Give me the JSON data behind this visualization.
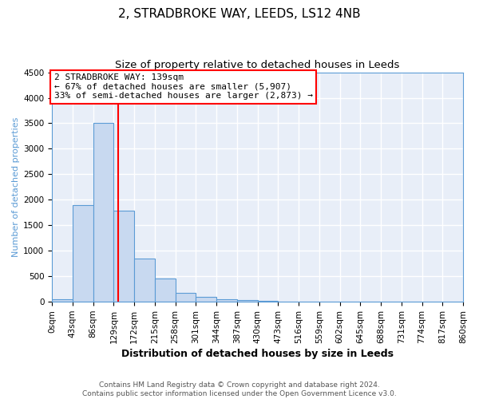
{
  "title": "2, STRADBROKE WAY, LEEDS, LS12 4NB",
  "subtitle": "Size of property relative to detached houses in Leeds",
  "xlabel": "Distribution of detached houses by size in Leeds",
  "ylabel": "Number of detached properties",
  "bin_edges": [
    0,
    43,
    86,
    129,
    172,
    215,
    258,
    301,
    344,
    387,
    430,
    473,
    516,
    559,
    602,
    645,
    688,
    731,
    774,
    817,
    860
  ],
  "bin_labels": [
    "0sqm",
    "43sqm",
    "86sqm",
    "129sqm",
    "172sqm",
    "215sqm",
    "258sqm",
    "301sqm",
    "344sqm",
    "387sqm",
    "430sqm",
    "473sqm",
    "516sqm",
    "559sqm",
    "602sqm",
    "645sqm",
    "688sqm",
    "731sqm",
    "774sqm",
    "817sqm",
    "860sqm"
  ],
  "bar_heights": [
    50,
    1900,
    3500,
    1780,
    850,
    460,
    175,
    95,
    55,
    35,
    20,
    5,
    0,
    0,
    0,
    0,
    0,
    0,
    0,
    0
  ],
  "bar_color": "#c8d9f0",
  "bar_edge_color": "#5b9bd5",
  "vline_x": 139,
  "vline_color": "red",
  "ylim": [
    0,
    4500
  ],
  "annotation_title": "2 STRADBROKE WAY: 139sqm",
  "annotation_line1": "← 67% of detached houses are smaller (5,907)",
  "annotation_line2": "33% of semi-detached houses are larger (2,873) →",
  "annotation_box_facecolor": "#ffffff",
  "annotation_box_edgecolor": "red",
  "footer_line1": "Contains HM Land Registry data © Crown copyright and database right 2024.",
  "footer_line2": "Contains public sector information licensed under the Open Government Licence v3.0.",
  "plot_bg_color": "#e8eef8",
  "fig_bg_color": "#ffffff",
  "grid_color": "#ffffff",
  "title_fontsize": 11,
  "subtitle_fontsize": 9.5,
  "xlabel_fontsize": 9,
  "ylabel_fontsize": 8,
  "tick_fontsize": 7.5,
  "annotation_fontsize": 8,
  "footer_fontsize": 6.5,
  "yticks": [
    0,
    500,
    1000,
    1500,
    2000,
    2500,
    3000,
    3500,
    4000,
    4500
  ]
}
